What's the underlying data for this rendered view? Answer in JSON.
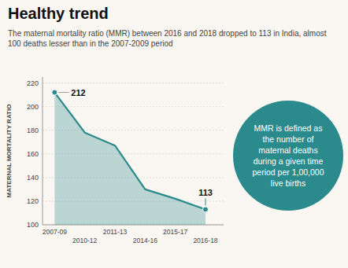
{
  "chart_data": {
    "type": "area",
    "title": "Healthy trend",
    "subtitle": "The maternal mortality ratio (MMR) between 2016 and 2018 dropped to 113 in India, almost 100 deaths lesser than in the 2007-2009 period",
    "y_label": "MATERNAL MORTALITY RATIO",
    "categories": [
      "2007-09",
      "2010-12",
      "2011-13",
      "2014-16",
      "2015-17",
      "2016-18"
    ],
    "values": [
      212,
      178,
      167,
      130,
      122,
      113
    ],
    "color": "#2a8a8c",
    "ylim": [
      100,
      225
    ],
    "yticks": [
      100,
      120,
      140,
      160,
      180,
      200,
      220
    ],
    "grid": true,
    "annotations": [
      {
        "text": "212",
        "x": "2007-09",
        "y": 212
      },
      {
        "text": "113",
        "x": "2016-18",
        "y": 113
      },
      {
        "text": "MMR is defined as the number of maternal deaths during a given time period per 1,00,000 live births"
      }
    ]
  }
}
